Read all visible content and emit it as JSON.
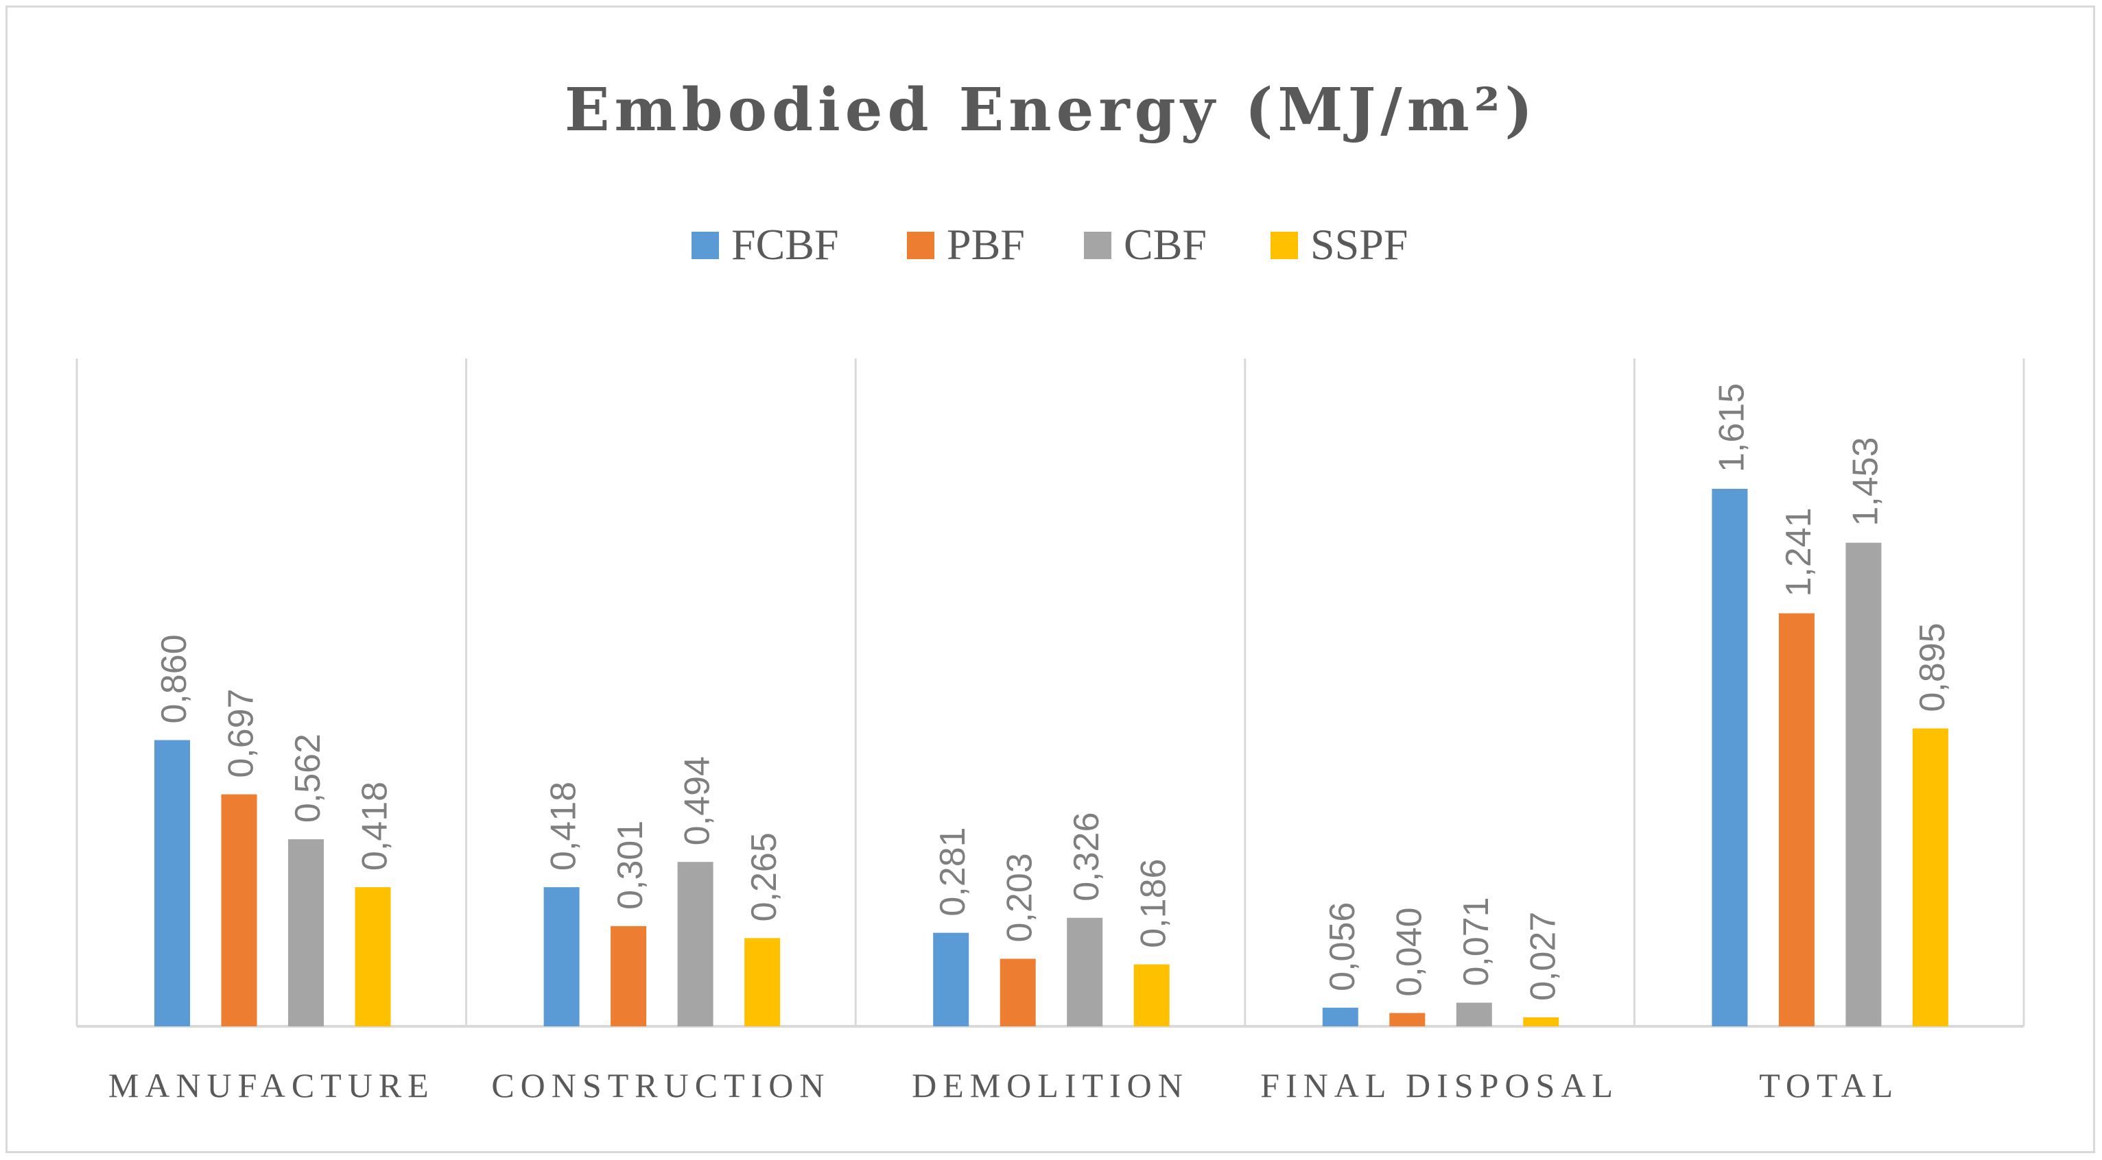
{
  "chart_data": {
    "type": "bar",
    "title": "Embodied Energy (MJ/m²)",
    "xlabel": "",
    "ylabel": "",
    "ylim": [
      0,
      1.8
    ],
    "grid": false,
    "legend_position": "top",
    "categories": [
      "MANUFACTURE",
      "CONSTRUCTION",
      "DEMOLITION",
      "FINAL DISPOSAL",
      "TOTAL"
    ],
    "series": [
      {
        "name": "FCBF",
        "color": "#5b9bd5",
        "values": [
          0.86,
          0.418,
          0.281,
          0.056,
          1.615
        ],
        "labels": [
          "0,860",
          "0,418",
          "0,281",
          "0,056",
          "1,615"
        ]
      },
      {
        "name": "PBF",
        "color": "#ed7d31",
        "values": [
          0.697,
          0.301,
          0.203,
          0.04,
          1.241
        ],
        "labels": [
          "0,697",
          "0,301",
          "0,203",
          "0,040",
          "1,241"
        ]
      },
      {
        "name": "CBF",
        "color": "#a5a5a5",
        "values": [
          0.562,
          0.494,
          0.326,
          0.071,
          1.453
        ],
        "labels": [
          "0,562",
          "0,494",
          "0,326",
          "0,071",
          "1,453"
        ]
      },
      {
        "name": "SSPF",
        "color": "#ffc000",
        "values": [
          0.418,
          0.265,
          0.186,
          0.027,
          0.895
        ],
        "labels": [
          "0,418",
          "0,265",
          "0,186",
          "0,027",
          "0,895"
        ]
      }
    ]
  }
}
